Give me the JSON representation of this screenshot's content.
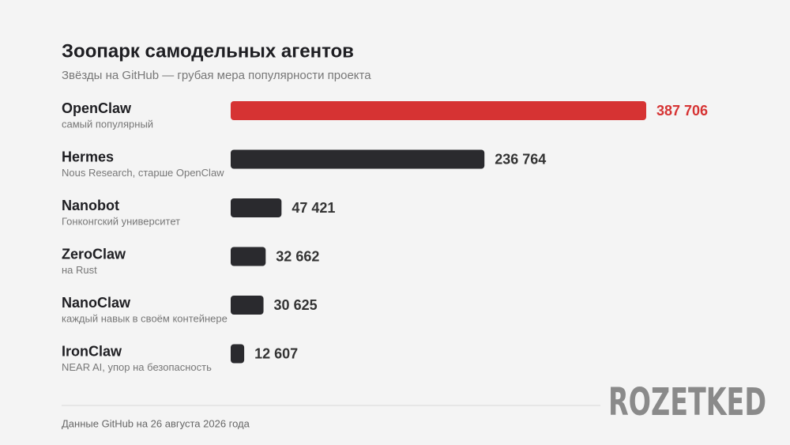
{
  "chart_data": {
    "type": "bar",
    "orientation": "horizontal",
    "title": "Зоопарк самодельных агентов",
    "subtitle": "Звёзды на GitHub — грубая мера популярности проекта",
    "categories": [
      "OpenClaw",
      "Hermes",
      "Nanobot",
      "ZeroClaw",
      "NanoClaw",
      "IronClaw"
    ],
    "category_notes": [
      "самый популярный",
      "Nous Research, старше OpenClaw",
      "Гонконгский университет",
      "на Rust",
      "каждый навык в своём контейнере",
      "NEAR AI, упор на безопасность"
    ],
    "values": [
      387706,
      236764,
      47421,
      32662,
      30625,
      12607
    ],
    "value_labels": [
      "387 706",
      "236 764",
      "47 421",
      "32 662",
      "30 625",
      "12 607"
    ],
    "colors": [
      "#d63333",
      "#2a2a2e",
      "#2a2a2e",
      "#2a2a2e",
      "#2a2a2e",
      "#2a2a2e"
    ],
    "label_colors": [
      "#d63333",
      "#333333",
      "#333333",
      "#333333",
      "#333333",
      "#333333"
    ],
    "footnote": "Данные GitHub на 26 августа 2026 года",
    "watermark": "ROZETKED"
  }
}
